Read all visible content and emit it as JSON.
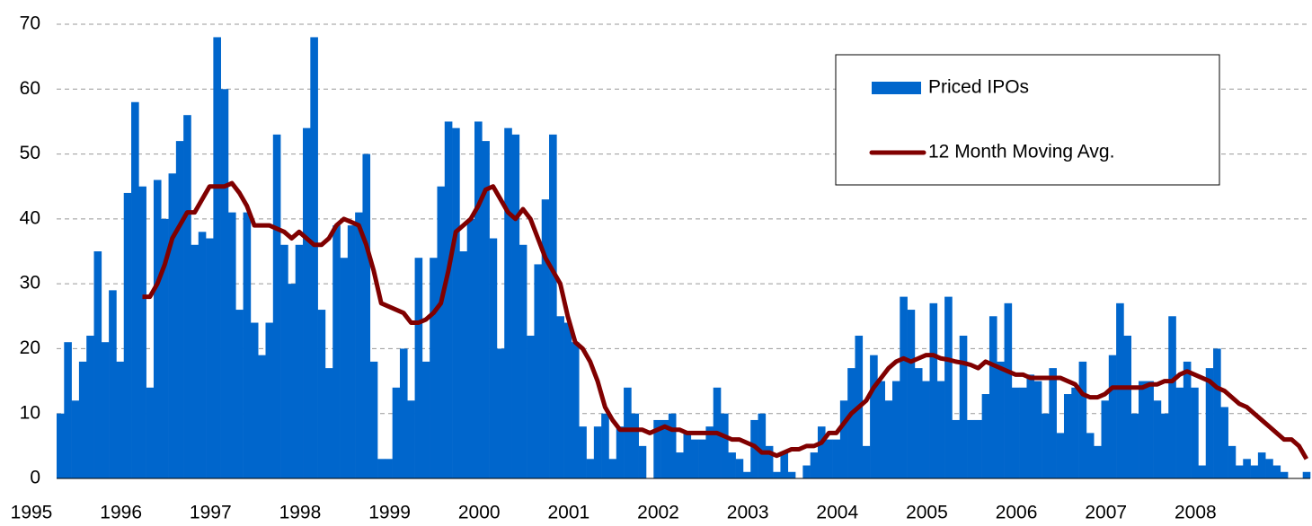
{
  "chart_data": {
    "type": "bar",
    "categories": [
      "1995",
      null,
      null,
      null,
      null,
      null,
      null,
      null,
      null,
      null,
      null,
      null,
      "1996",
      null,
      null,
      null,
      null,
      null,
      null,
      null,
      null,
      null,
      null,
      null,
      "1997",
      null,
      null,
      null,
      null,
      null,
      null,
      null,
      null,
      null,
      null,
      null,
      "1998",
      null,
      null,
      null,
      null,
      null,
      null,
      null,
      null,
      null,
      null,
      null,
      "1999",
      null,
      null,
      null,
      null,
      null,
      null,
      null,
      null,
      null,
      null,
      null,
      "2000",
      null,
      null,
      null,
      null,
      null,
      null,
      null,
      null,
      null,
      null,
      null,
      "2001",
      null,
      null,
      null,
      null,
      null,
      null,
      null,
      null,
      null,
      null,
      null,
      "2002",
      null,
      null,
      null,
      null,
      null,
      null,
      null,
      null,
      null,
      null,
      null,
      "2003",
      null,
      null,
      null,
      null,
      null,
      null,
      null,
      null,
      null,
      null,
      null,
      "2004",
      null,
      null,
      null,
      null,
      null,
      null,
      null,
      null,
      null,
      null,
      null,
      "2005",
      null,
      null,
      null,
      null,
      null,
      null,
      null,
      null,
      null,
      null,
      null,
      "2006",
      null,
      null,
      null,
      null,
      null,
      null,
      null,
      null,
      null,
      null,
      null,
      "2007",
      null,
      null,
      null,
      null,
      null,
      null,
      null,
      null,
      null,
      null,
      null,
      "2008",
      null,
      null,
      null,
      null,
      null,
      null,
      null,
      null,
      null,
      null,
      null
    ],
    "series": [
      {
        "name": "Priced IPOs",
        "type": "bar",
        "color": "#0066cc",
        "values": [
          10,
          21,
          12,
          18,
          22,
          35,
          21,
          29,
          18,
          44,
          58,
          45,
          14,
          46,
          40,
          47,
          52,
          56,
          36,
          38,
          37,
          68,
          60,
          41,
          26,
          41,
          24,
          19,
          24,
          53,
          36,
          30,
          36,
          54,
          68,
          26,
          17,
          39,
          34,
          39,
          41,
          50,
          18,
          3,
          3,
          14,
          20,
          12,
          34,
          18,
          34,
          45,
          55,
          54,
          35,
          40,
          55,
          52,
          37,
          20,
          54,
          53,
          36,
          22,
          33,
          43,
          53,
          25,
          24,
          21,
          8,
          3,
          8,
          10,
          3,
          8,
          14,
          10,
          5,
          0,
          9,
          9,
          10,
          4,
          7,
          6,
          6,
          8,
          14,
          10,
          4,
          3,
          1,
          9,
          10,
          5,
          1,
          4,
          1,
          0,
          2,
          4,
          8,
          6,
          6,
          12,
          17,
          22,
          5,
          19,
          15,
          12,
          15,
          28,
          26,
          17,
          15,
          27,
          15,
          28,
          9,
          22,
          9,
          9,
          13,
          25,
          18,
          27,
          14,
          14,
          16,
          15,
          10,
          17,
          7,
          13,
          14,
          18,
          7,
          5,
          12,
          19,
          27,
          22,
          10,
          15,
          15,
          12,
          10,
          25,
          14,
          18,
          14,
          2,
          17,
          20,
          11,
          5,
          2,
          3,
          2,
          4,
          3,
          2,
          1,
          0,
          0,
          1
        ]
      },
      {
        "name": "12 Month Moving Avg.",
        "type": "line",
        "color": "#800000",
        "values": [
          null,
          null,
          null,
          null,
          null,
          null,
          null,
          null,
          null,
          null,
          null,
          28,
          28,
          30,
          33,
          37,
          39,
          41,
          41,
          43,
          45,
          45,
          45,
          45.5,
          44,
          42,
          39,
          39,
          39,
          38.5,
          38,
          37,
          38,
          37,
          36,
          36,
          37,
          39,
          40,
          39.5,
          39,
          36,
          32,
          27,
          26.5,
          26,
          25.5,
          24,
          24,
          24.5,
          25.5,
          27,
          32,
          38,
          39,
          40,
          42,
          44.5,
          45,
          43,
          41,
          40,
          41.5,
          40,
          37,
          34,
          32,
          30,
          25,
          21,
          20,
          18,
          15,
          11,
          9,
          7.5,
          7.5,
          7.5,
          7.5,
          7,
          7.5,
          8,
          7.5,
          7.5,
          7,
          7,
          7,
          7,
          7,
          6.5,
          6,
          6,
          5.5,
          5,
          4,
          4,
          3.5,
          4,
          4.5,
          4.5,
          5,
          5,
          5.5,
          7,
          7,
          8.5,
          10,
          11,
          12,
          14,
          15.5,
          17,
          18,
          18.5,
          18,
          18.5,
          19,
          19,
          18.5,
          18.3,
          18,
          17.8,
          17.5,
          17,
          18,
          17.5,
          17,
          16.5,
          16,
          16,
          15.5,
          15.5,
          15.5,
          15.5,
          15.5,
          15,
          14.5,
          13,
          12.5,
          12.5,
          13,
          14,
          14,
          14,
          14,
          14,
          14.5,
          14.5,
          15,
          15,
          16,
          16.5,
          16,
          15.5,
          15,
          14,
          13.5,
          12.5,
          11.5,
          11,
          10,
          9,
          8,
          7,
          6,
          6,
          5,
          3
        ]
      }
    ],
    "ylim": [
      0,
      70
    ],
    "yticks": [
      0,
      10,
      20,
      30,
      40,
      50,
      60,
      70
    ],
    "grid": true,
    "legend": "upper right"
  }
}
